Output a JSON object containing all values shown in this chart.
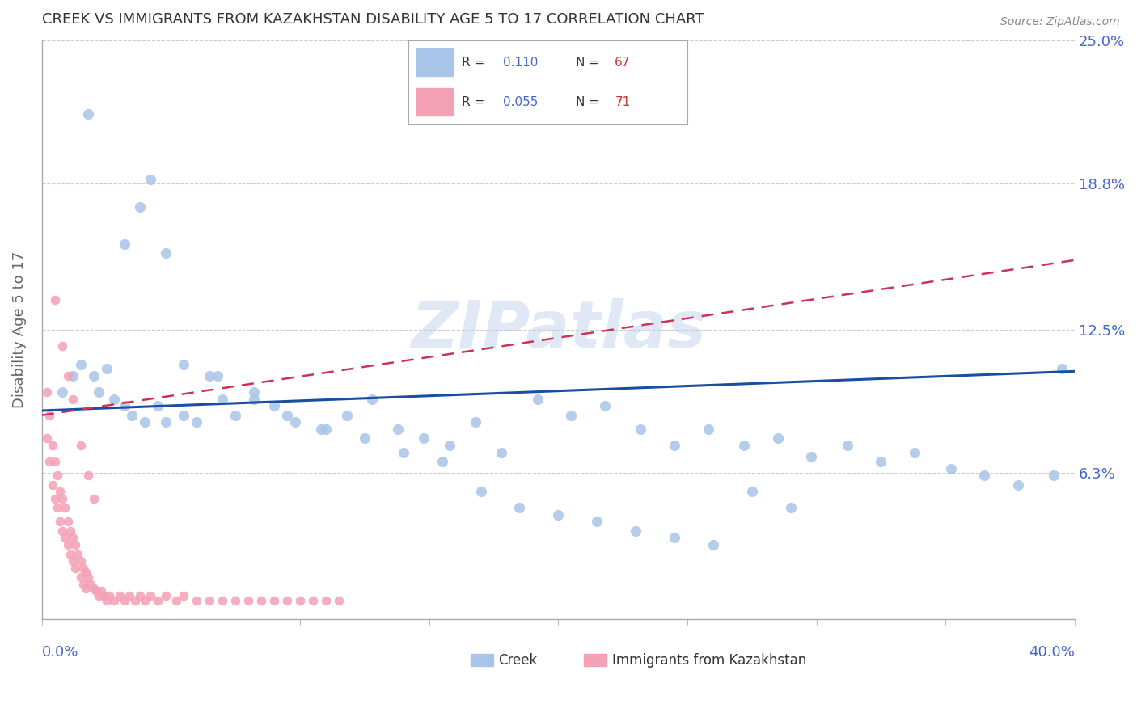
{
  "title": "CREEK VS IMMIGRANTS FROM KAZAKHSTAN DISABILITY AGE 5 TO 17 CORRELATION CHART",
  "source": "Source: ZipAtlas.com",
  "ylabel": "Disability Age 5 to 17",
  "xlim": [
    0.0,
    0.4
  ],
  "ylim": [
    0.0,
    0.25
  ],
  "yticks": [
    0.0,
    0.063,
    0.125,
    0.188,
    0.25
  ],
  "ytick_labels": [
    "",
    "6.3%",
    "12.5%",
    "18.8%",
    "25.0%"
  ],
  "creek_color": "#a8c4e8",
  "imm_color": "#f4a0b5",
  "creek_line_color": "#1a4fa0",
  "imm_line_color": "#cc3355",
  "tick_color": "#4466cc",
  "watermark": "ZIPatlas",
  "creek_trend_x": [
    0.0,
    0.4
  ],
  "creek_trend_y": [
    0.09,
    0.107
  ],
  "imm_trend_x": [
    0.0,
    0.4
  ],
  "imm_trend_y": [
    0.088,
    0.155
  ],
  "creek_scatter_x": [
    0.018,
    0.038,
    0.042,
    0.032,
    0.048,
    0.008,
    0.012,
    0.015,
    0.02,
    0.022,
    0.025,
    0.028,
    0.032,
    0.035,
    0.04,
    0.045,
    0.048,
    0.055,
    0.06,
    0.065,
    0.07,
    0.075,
    0.082,
    0.09,
    0.098,
    0.108,
    0.118,
    0.128,
    0.138,
    0.148,
    0.158,
    0.168,
    0.178,
    0.192,
    0.205,
    0.218,
    0.232,
    0.245,
    0.258,
    0.272,
    0.285,
    0.298,
    0.312,
    0.325,
    0.338,
    0.352,
    0.365,
    0.378,
    0.392,
    0.055,
    0.068,
    0.082,
    0.095,
    0.11,
    0.125,
    0.14,
    0.155,
    0.17,
    0.185,
    0.2,
    0.215,
    0.23,
    0.245,
    0.26,
    0.275,
    0.29,
    0.395
  ],
  "creek_scatter_y": [
    0.218,
    0.178,
    0.19,
    0.162,
    0.158,
    0.098,
    0.105,
    0.11,
    0.105,
    0.098,
    0.108,
    0.095,
    0.092,
    0.088,
    0.085,
    0.092,
    0.085,
    0.088,
    0.085,
    0.105,
    0.095,
    0.088,
    0.098,
    0.092,
    0.085,
    0.082,
    0.088,
    0.095,
    0.082,
    0.078,
    0.075,
    0.085,
    0.072,
    0.095,
    0.088,
    0.092,
    0.082,
    0.075,
    0.082,
    0.075,
    0.078,
    0.07,
    0.075,
    0.068,
    0.072,
    0.065,
    0.062,
    0.058,
    0.062,
    0.11,
    0.105,
    0.095,
    0.088,
    0.082,
    0.078,
    0.072,
    0.068,
    0.055,
    0.048,
    0.045,
    0.042,
    0.038,
    0.035,
    0.032,
    0.055,
    0.048,
    0.108
  ],
  "imm_scatter_x": [
    0.002,
    0.002,
    0.003,
    0.003,
    0.004,
    0.004,
    0.005,
    0.005,
    0.006,
    0.006,
    0.007,
    0.007,
    0.008,
    0.008,
    0.009,
    0.009,
    0.01,
    0.01,
    0.011,
    0.011,
    0.012,
    0.012,
    0.013,
    0.013,
    0.014,
    0.015,
    0.015,
    0.016,
    0.016,
    0.017,
    0.017,
    0.018,
    0.019,
    0.02,
    0.021,
    0.022,
    0.023,
    0.024,
    0.025,
    0.026,
    0.028,
    0.03,
    0.032,
    0.034,
    0.036,
    0.038,
    0.04,
    0.042,
    0.045,
    0.048,
    0.052,
    0.055,
    0.06,
    0.065,
    0.07,
    0.075,
    0.08,
    0.085,
    0.09,
    0.095,
    0.1,
    0.105,
    0.11,
    0.115,
    0.005,
    0.008,
    0.01,
    0.012,
    0.015,
    0.018,
    0.02
  ],
  "imm_scatter_y": [
    0.098,
    0.078,
    0.088,
    0.068,
    0.075,
    0.058,
    0.068,
    0.052,
    0.062,
    0.048,
    0.055,
    0.042,
    0.052,
    0.038,
    0.048,
    0.035,
    0.042,
    0.032,
    0.038,
    0.028,
    0.035,
    0.025,
    0.032,
    0.022,
    0.028,
    0.025,
    0.018,
    0.022,
    0.015,
    0.02,
    0.013,
    0.018,
    0.015,
    0.013,
    0.012,
    0.01,
    0.012,
    0.01,
    0.008,
    0.01,
    0.008,
    0.01,
    0.008,
    0.01,
    0.008,
    0.01,
    0.008,
    0.01,
    0.008,
    0.01,
    0.008,
    0.01,
    0.008,
    0.008,
    0.008,
    0.008,
    0.008,
    0.008,
    0.008,
    0.008,
    0.008,
    0.008,
    0.008,
    0.008,
    0.138,
    0.118,
    0.105,
    0.095,
    0.075,
    0.062,
    0.052
  ]
}
